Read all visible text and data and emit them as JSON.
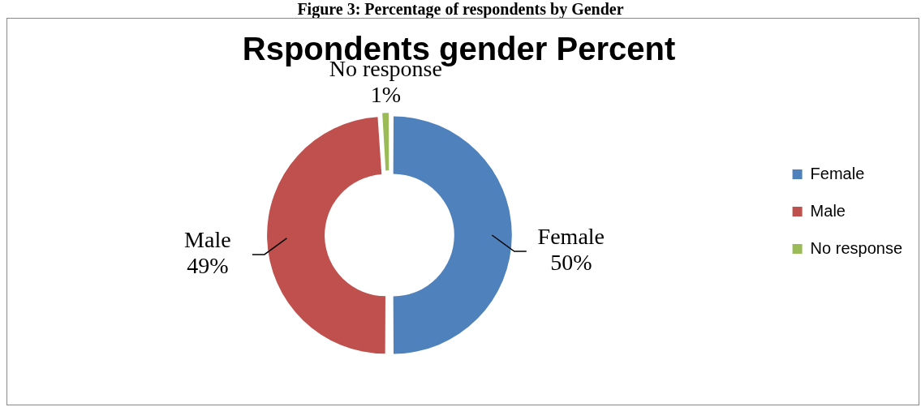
{
  "chart_data": {
    "type": "donut",
    "title": "Rspondents gender Percent",
    "annotations": [
      "Figure 3: Percentage of respondents by Gender"
    ],
    "categories": [
      "Female",
      "Male",
      "No response"
    ],
    "values": [
      50,
      49,
      1
    ],
    "value_labels": [
      "50%",
      "49%",
      "1%"
    ],
    "colors": [
      "#4f81bd",
      "#c0504d",
      "#9bbb59"
    ],
    "legend": "right"
  }
}
